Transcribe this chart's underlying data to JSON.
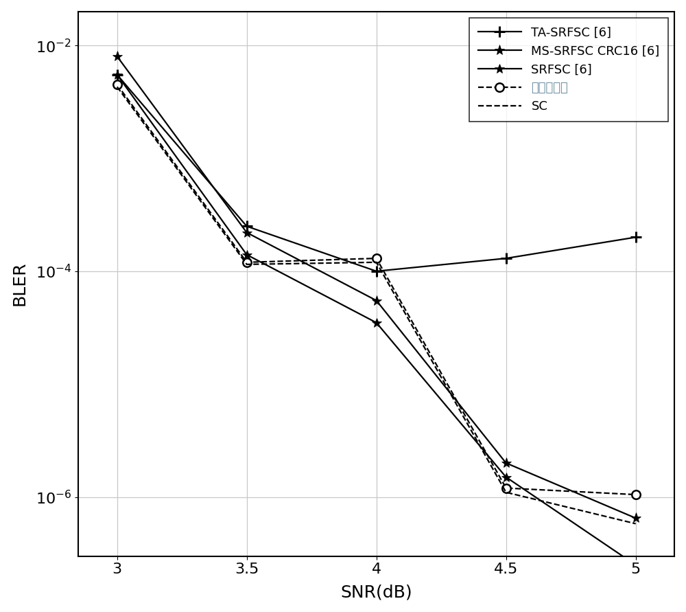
{
  "snr": [
    3,
    3.5,
    4,
    4.5,
    5
  ],
  "ta_srfsc": [
    0.0055,
    0.00025,
    0.0001,
    0.00013,
    0.0002
  ],
  "ms_srfsc": [
    0.008,
    0.00022,
    5.5e-05,
    2e-06,
    6.5e-07
  ],
  "srfsc": [
    0.0055,
    0.00014,
    3.5e-05,
    1.5e-06,
    2.5e-07
  ],
  "invention": [
    0.0045,
    0.00012,
    0.00013,
    1.2e-06,
    1.05e-06
  ],
  "sc": [
    0.0043,
    0.000115,
    0.00012,
    1.1e-06,
    5.8e-07
  ],
  "xlabel": "SNR(dB)",
  "ylabel": "BLER",
  "xlim": [
    2.85,
    5.15
  ],
  "ylim": [
    3e-07,
    0.02
  ],
  "yticks": [
    1e-06,
    0.0001,
    0.01
  ],
  "xticks": [
    3,
    3.5,
    4,
    4.5,
    5
  ],
  "xtick_labels": [
    "3",
    "3.5",
    "4",
    "4.5",
    "5"
  ],
  "line_color": "#000000",
  "invention_label_color": "#6b8ea0",
  "legend_labels": [
    "TA-SRFSC [6]",
    "MS-SRFSC CRC16 [6]",
    "SRFSC [6]",
    "本发明方案",
    "SC"
  ],
  "grid_color": "#c8c8c8",
  "bg_color": "#ffffff",
  "linewidth": 1.6,
  "markersize_plus": 12,
  "markersize_star": 11,
  "markersize_circle": 9
}
